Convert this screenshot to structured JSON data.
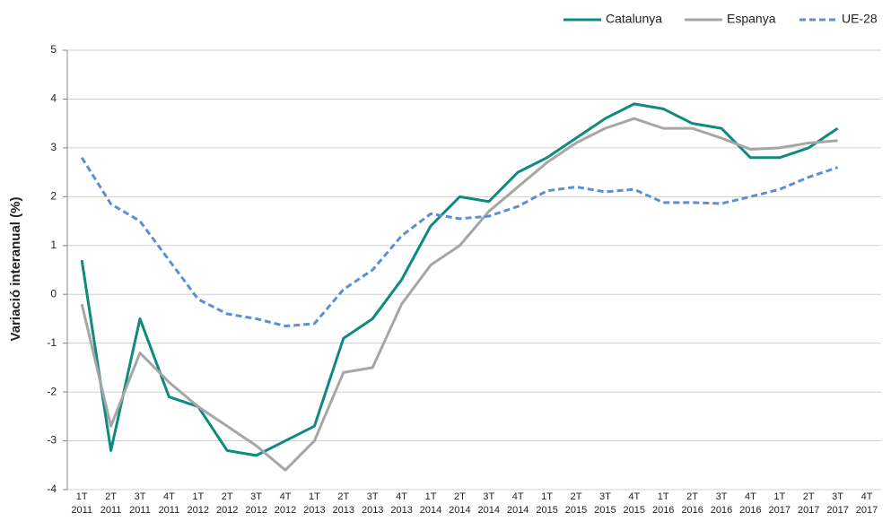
{
  "chart_data": {
    "type": "line",
    "y_label": "Variació interanual (%)",
    "categories": [
      "1T 2011",
      "2T 2011",
      "3T 2011",
      "4T 2011",
      "1T 2012",
      "2T 2012",
      "3T 2012",
      "4T 2012",
      "1T 2013",
      "2T 2013",
      "3T 2013",
      "4T 2013",
      "1T 2014",
      "2T 2014",
      "3T 2014",
      "4T 2014",
      "1T 2015",
      "2T 2015",
      "3T 2015",
      "4T 2015",
      "1T 2016",
      "2T 2016",
      "3T 2016",
      "4T 2016",
      "1T 2017",
      "2T 2017",
      "3T 2017",
      "4T 2017"
    ],
    "series": [
      {
        "name": "Catalunya",
        "color": "#0e8a7f",
        "dashed": false,
        "values": [
          0.7,
          -3.2,
          -0.5,
          -2.1,
          -2.3,
          -3.2,
          -3.3,
          -3.0,
          -2.7,
          -0.9,
          -0.5,
          0.3,
          1.4,
          2.0,
          1.9,
          2.5,
          2.8,
          3.2,
          3.6,
          3.9,
          3.8,
          3.5,
          3.4,
          2.8,
          2.8,
          3.0,
          3.4,
          null
        ]
      },
      {
        "name": "Espanya",
        "color": "#a6a6a6",
        "dashed": false,
        "values": [
          -0.2,
          -2.7,
          -1.2,
          -1.8,
          -2.3,
          -2.7,
          -3.1,
          -3.6,
          -3.0,
          -1.6,
          -1.5,
          -0.2,
          0.6,
          1.0,
          1.7,
          2.2,
          2.7,
          3.1,
          3.4,
          3.6,
          3.4,
          3.4,
          3.2,
          2.97,
          3.0,
          3.1,
          3.15,
          null
        ]
      },
      {
        "name": "UE-28",
        "color": "#5b8fd6",
        "dashed": true,
        "values": [
          2.8,
          1.85,
          1.5,
          0.7,
          -0.1,
          -0.4,
          -0.5,
          -0.65,
          -0.6,
          0.1,
          0.5,
          1.2,
          1.65,
          1.55,
          1.6,
          1.8,
          2.12,
          2.2,
          2.1,
          2.15,
          1.88,
          1.88,
          1.86,
          2.0,
          2.15,
          2.4,
          2.6,
          null
        ]
      }
    ],
    "ylim": [
      -4,
      5
    ],
    "yticks": [
      -4,
      -3,
      -2,
      -1,
      0,
      1,
      2,
      3,
      4,
      5
    ],
    "grid": true,
    "legend": "top-right"
  }
}
